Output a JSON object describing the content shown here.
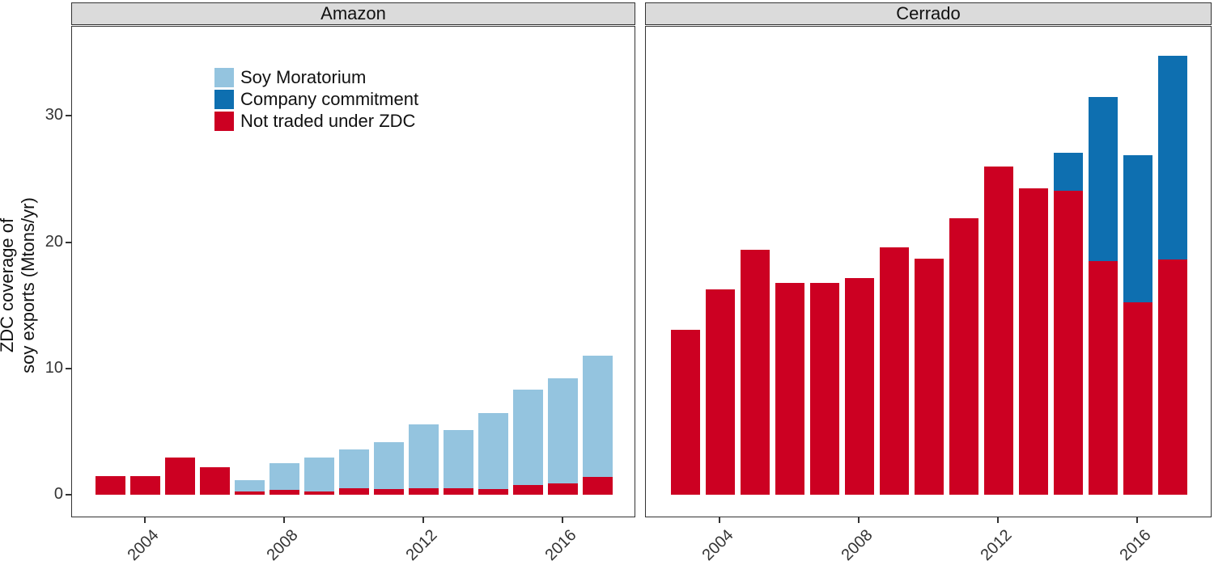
{
  "figure": {
    "y_axis": {
      "title_line1": "ZDC coverage of",
      "title_line2": "soy exports (Mtons/yr)",
      "tick_labels": [
        "0",
        "10",
        "20",
        "30"
      ]
    },
    "x_axis": {
      "tick_years": [
        "2004",
        "2008",
        "2012",
        "2016"
      ]
    }
  },
  "legend": {
    "items": [
      {
        "key": "soy_moratorium",
        "label": "Soy Moratorium",
        "color": "#94C4DF"
      },
      {
        "key": "company_commitment",
        "label": "Company commitment",
        "color": "#0E6FB0"
      },
      {
        "key": "not_traded",
        "label": "Not traded under ZDC",
        "color": "#CC0022"
      }
    ]
  },
  "colors": {
    "soy_moratorium": "#94C4DF",
    "company_commitment": "#0E6FB0",
    "not_traded": "#CC0022",
    "strip_background": "#DBDBDB",
    "panel_border": "#333333",
    "axis_text": "#333333"
  },
  "chart_data": {
    "type": "bar",
    "stacked": true,
    "title": "",
    "xlabel": "",
    "ylabel": "ZDC coverage of soy exports (Mtons/yr)",
    "ylim": [
      0,
      37
    ],
    "y_ticks": [
      0,
      10,
      20,
      30
    ],
    "x_ticks": [
      2004,
      2008,
      2012,
      2016
    ],
    "grid": false,
    "legend_position": "top-left-inside",
    "x": [
      2003,
      2004,
      2005,
      2006,
      2007,
      2008,
      2009,
      2010,
      2011,
      2012,
      2013,
      2014,
      2015,
      2016,
      2017
    ],
    "panels": [
      {
        "title": "Amazon",
        "series": [
          {
            "name": "Not traded under ZDC",
            "values": [
              1.6,
              1.6,
              3.1,
              2.3,
              0.3,
              0.4,
              0.3,
              0.55,
              0.45,
              0.55,
              0.55,
              0.45,
              0.8,
              0.9,
              1.4
            ]
          },
          {
            "name": "Company commitment",
            "values": [
              0,
              0,
              0,
              0,
              0,
              0,
              0,
              0,
              0,
              0,
              0,
              0,
              0,
              0,
              0
            ]
          },
          {
            "name": "Soy Moratorium",
            "values": [
              0,
              0,
              0,
              0,
              1.0,
              2.2,
              2.8,
              3.15,
              3.85,
              5.15,
              4.7,
              6.15,
              7.65,
              8.45,
              9.75
            ]
          }
        ]
      },
      {
        "title": "Cerrado",
        "series": [
          {
            "name": "Not traded under ZDC",
            "values": [
              13.2,
              16.4,
              19.5,
              16.9,
              16.9,
              17.3,
              19.7,
              18.8,
              22.0,
              26.1,
              24.4,
              24.2,
              18.6,
              15.3,
              18.7
            ]
          },
          {
            "name": "Company commitment",
            "values": [
              0,
              0,
              0,
              0,
              0,
              0,
              0,
              0,
              0,
              0,
              0,
              3.0,
              13.0,
              11.7,
              16.2
            ]
          },
          {
            "name": "Soy Moratorium",
            "values": [
              0,
              0,
              0,
              0,
              0,
              0,
              0,
              0,
              0,
              0,
              0,
              0,
              0,
              0,
              0
            ]
          }
        ]
      }
    ]
  }
}
